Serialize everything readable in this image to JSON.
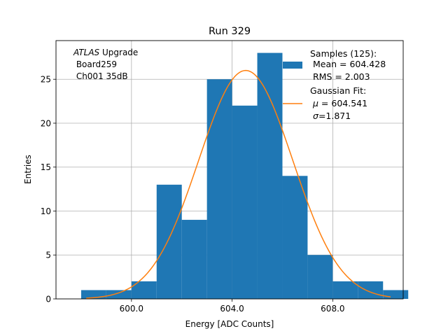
{
  "chart_data": {
    "type": "bar",
    "title": "Run 329",
    "xlabel": "Energy [ADC Counts]",
    "ylabel": "Entries",
    "xlim": [
      597.0,
      610.8
    ],
    "ylim": [
      0,
      29.4
    ],
    "grid": true,
    "x_ticks": [
      600,
      604,
      608
    ],
    "x_tick_labels": [
      "600.0",
      "604.0",
      "608.0"
    ],
    "y_ticks": [
      0,
      5,
      10,
      15,
      20,
      25
    ],
    "y_tick_labels": [
      "0",
      "5",
      "10",
      "15",
      "20",
      "25"
    ],
    "bin_edges": [
      598,
      599,
      600,
      601,
      602,
      603,
      604,
      605,
      606,
      607,
      608,
      609,
      610,
      611
    ],
    "counts": [
      1,
      1,
      2,
      13,
      9,
      25,
      22,
      28,
      14,
      5,
      2,
      2,
      1
    ],
    "hist_color": "#1f77b4",
    "fit": {
      "type": "gaussian",
      "mu": 604.541,
      "sigma": 1.871,
      "amplitude": 26.0,
      "x_range": [
        598.2,
        610.3
      ],
      "color": "#ff7f0e"
    },
    "annotation": {
      "line1_italic": "ATLAS",
      "line1_rest": " Upgrade",
      "line2": " Board259",
      "line3": " Ch001 35dB"
    },
    "legend": {
      "position": "top-right",
      "samples": {
        "line1": "Samples (125):",
        "line2": " Mean = 604.428",
        "line3": " RMS = 2.003"
      },
      "fit": {
        "line1": "Gaussian Fit:",
        "mu_symbol": "μ",
        "mu_text": " = 604.541",
        "sigma_symbol": "σ",
        "sigma_text": "=1.871"
      }
    }
  }
}
